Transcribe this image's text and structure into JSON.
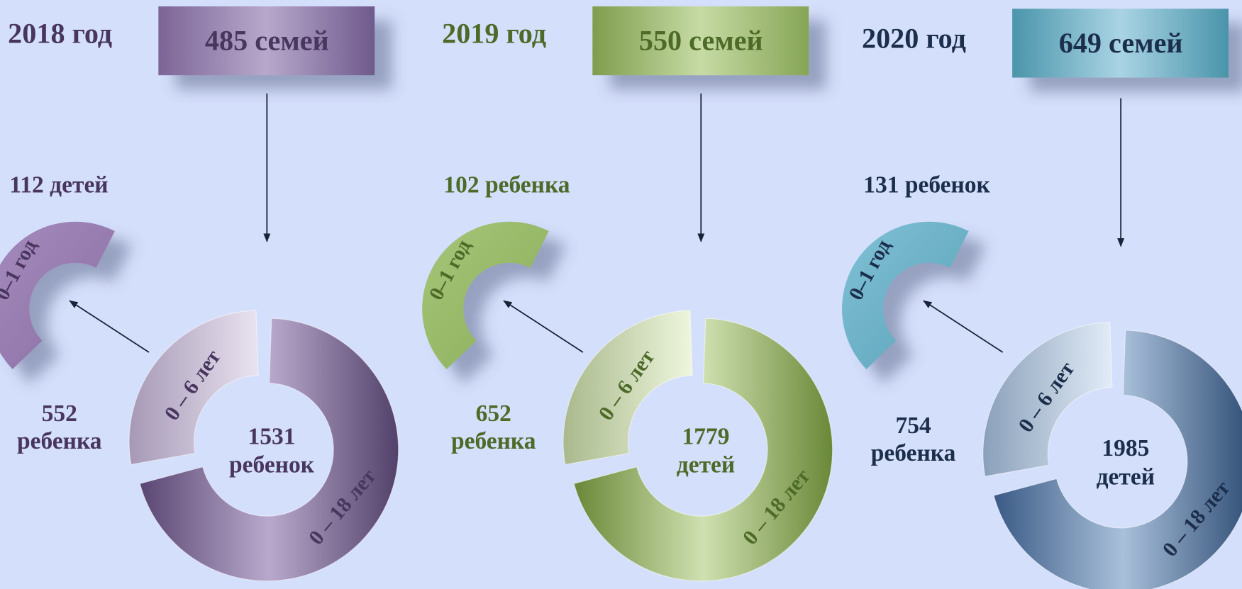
{
  "panels": [
    {
      "year": "2018 год",
      "families": "485 семей",
      "infants_count": "112 детей",
      "infants_label": "0–1 год",
      "preschool_label": "0 – 6 лет",
      "preschool_count": [
        "552",
        "ребенка"
      ],
      "all_label": "0 – 18 лет",
      "total": [
        "1531",
        "ребенок"
      ]
    },
    {
      "year": "2019 год",
      "families": "550 семей",
      "infants_count": "102 ребенка",
      "infants_label": "0–1 год",
      "preschool_label": "0 – 6 лет",
      "preschool_count": [
        "652",
        "ребенка"
      ],
      "all_label": "0 – 18 лет",
      "total": [
        "1779",
        "детей"
      ]
    },
    {
      "year": "2020 год",
      "families": "649 семей",
      "infants_count": "131 ребенок",
      "infants_label": "0–1 год",
      "preschool_label": "0 – 6 лет",
      "preschool_count": [
        "754",
        "ребенка"
      ],
      "all_label": "0 – 18 лет",
      "total": [
        "1985",
        "детей"
      ]
    }
  ]
}
